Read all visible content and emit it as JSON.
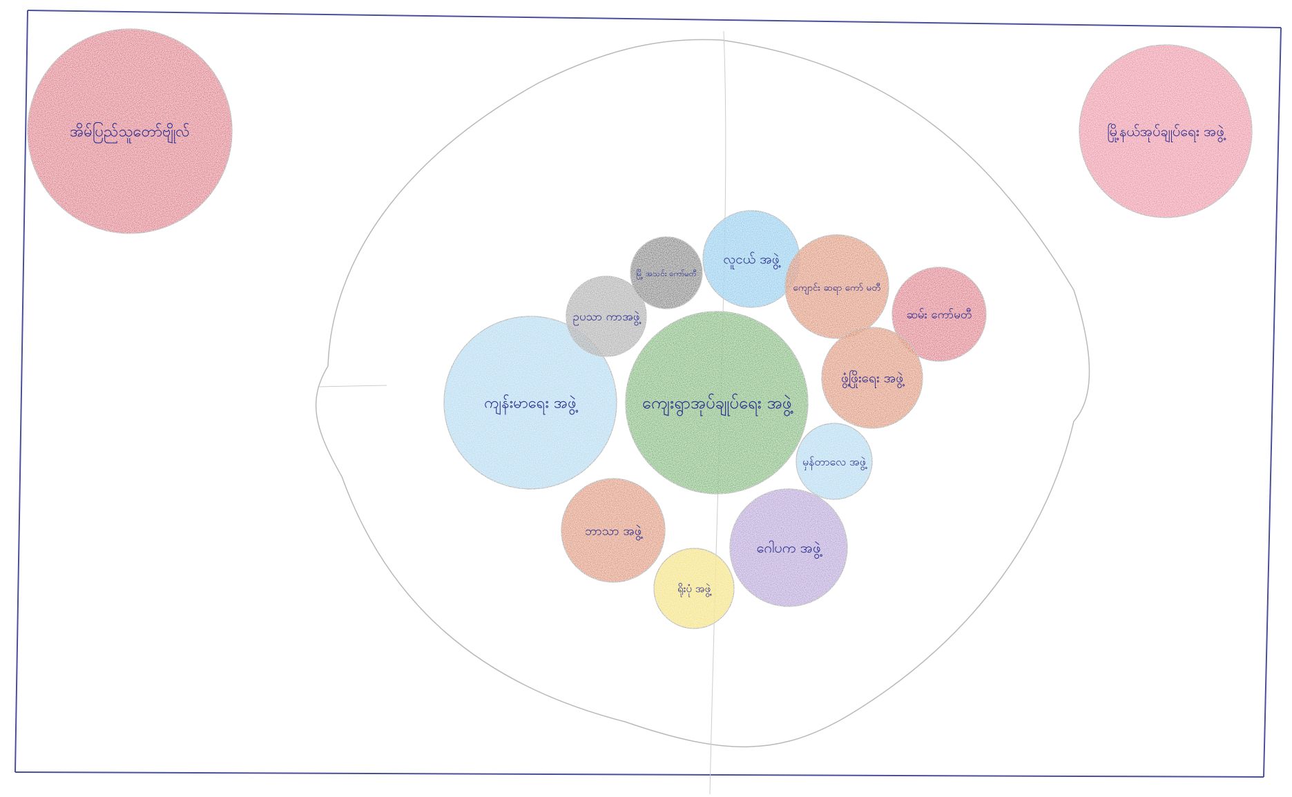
{
  "diagram": {
    "palette": {
      "frame": "#4a4f9a",
      "boundary": "#b9b9b9",
      "text": "#2b2f8f",
      "red": "#d9475f",
      "pink": "#e9718d",
      "green": "#4aa83e",
      "light_blue": "#9fd3ee",
      "sky_blue": "#6ec3ea",
      "orange": "#d8753a",
      "black": "#555555",
      "grey": "#9a9a9a",
      "purple": "#a68ad0",
      "yellow": "#f2dc38"
    },
    "outer_circles": [
      {
        "id": "top-left-red",
        "color": "red",
        "text": "အိမ်ပြည်သူတော်ဗျိုလ်"
      },
      {
        "id": "top-right-pink",
        "color": "pink",
        "text": "မြို့နယ်အုပ်ချုပ်ရေး အဖွဲ့"
      }
    ],
    "central": {
      "id": "center-green",
      "color": "green",
      "text": "ကျေးရွာအုပ်ချုပ်ရေး အဖွဲ့"
    },
    "groups": [
      {
        "id": "youth",
        "color": "light_blue",
        "text": "ကျန်းမာရေး အဖွဲ့"
      },
      {
        "id": "elders",
        "color": "grey",
        "text": "ဥပသာ ကာအဖွဲ့"
      },
      {
        "id": "black",
        "color": "black",
        "text": "မြို့ အသင်း ကော်မတီ"
      },
      {
        "id": "religious",
        "color": "sky_blue",
        "text": "လူငယ် အဖွဲ့"
      },
      {
        "id": "school",
        "color": "orange",
        "text": "ကျောင်း ဆရာ ကော် မတီ"
      },
      {
        "id": "security",
        "color": "red",
        "text": "ဆမ်း ကော်မတီ"
      },
      {
        "id": "development",
        "color": "orange",
        "text": "ဖွံ့ဖြိုးရေး အဖွဲ့"
      },
      {
        "id": "women",
        "color": "light_blue",
        "text": "မှန်တာလေ အဖွဲ့"
      },
      {
        "id": "social",
        "color": "purple",
        "text": "ဂေါပက အဖွဲ့"
      },
      {
        "id": "small-yellow",
        "color": "yellow",
        "text": "ရိုးပုံ အဖွဲ့"
      },
      {
        "id": "dharma",
        "color": "orange",
        "text": "ဘာသာ အဖွဲ့"
      }
    ]
  }
}
